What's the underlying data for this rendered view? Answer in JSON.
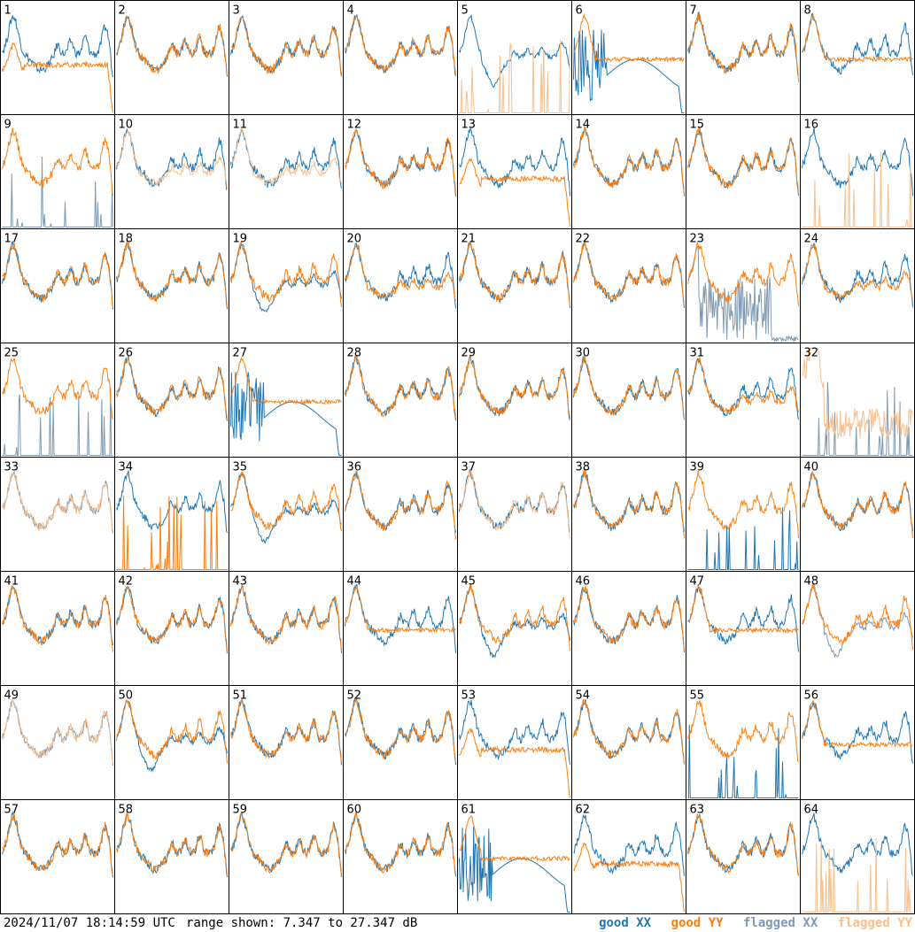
{
  "footer": {
    "timestamp": "2024/11/07 18:14:59 UTC",
    "range_text": "range shown: 7.347 to 27.347 dB"
  },
  "legend": [
    {
      "key": "good_xx",
      "label": "good XX",
      "color": "#1f77b4"
    },
    {
      "key": "good_yy",
      "label": "good YY",
      "color": "#ff7f0e"
    },
    {
      "key": "flagged_xx",
      "label": "flagged XX",
      "color": "#7f9bb3"
    },
    {
      "key": "flagged_yy",
      "label": "flagged YY",
      "color": "#f7c08e"
    }
  ],
  "chart_data": {
    "type": "line",
    "ylim": [
      7.347,
      27.347
    ],
    "units": "dB",
    "grid": {
      "rows": 8,
      "cols": 8
    },
    "panels": [
      {
        "label": "1",
        "xx": "good",
        "yy": "good",
        "yy_shape": "droop",
        "xx_shape": "normal"
      },
      {
        "label": "2",
        "xx": "good",
        "yy": "good"
      },
      {
        "label": "3",
        "xx": "good",
        "yy": "good"
      },
      {
        "label": "4",
        "xx": "good",
        "yy": "good"
      },
      {
        "label": "5",
        "xx": "good",
        "yy": "flagged",
        "xx_shape": "depressed",
        "yy_shape": "spikes"
      },
      {
        "label": "6",
        "xx": "good",
        "yy": "good",
        "xx_shape": "noisydip",
        "yy_shape": "flat"
      },
      {
        "label": "7",
        "xx": "good",
        "yy": "good"
      },
      {
        "label": "8",
        "xx": "good",
        "yy": "good",
        "yy_shape": "flat"
      },
      {
        "label": "9",
        "xx": "flagged",
        "yy": "good",
        "xx_shape": "spikes",
        "yy_shape": "normal"
      },
      {
        "label": "10",
        "xx": "good",
        "yy": "flagged",
        "yy_shape": "low"
      },
      {
        "label": "11",
        "xx": "good",
        "yy": "flagged",
        "yy_shape": "low"
      },
      {
        "label": "12",
        "xx": "good",
        "yy": "good"
      },
      {
        "label": "13",
        "xx": "good",
        "yy": "good",
        "yy_shape": "droop"
      },
      {
        "label": "14",
        "xx": "good",
        "yy": "good"
      },
      {
        "label": "15",
        "xx": "good",
        "yy": "good"
      },
      {
        "label": "16",
        "xx": "good",
        "yy": "flagged",
        "yy_shape": "spikes"
      },
      {
        "label": "17",
        "xx": "good",
        "yy": "good"
      },
      {
        "label": "18",
        "xx": "good",
        "yy": "good"
      },
      {
        "label": "19",
        "xx": "good",
        "yy": "good",
        "xx_shape": "depressed"
      },
      {
        "label": "20",
        "xx": "good",
        "yy": "good",
        "yy_shape": "low"
      },
      {
        "label": "21",
        "xx": "good",
        "yy": "good"
      },
      {
        "label": "22",
        "xx": "good",
        "yy": "good"
      },
      {
        "label": "23",
        "xx": "flagged",
        "yy": "good",
        "xx_shape": "noise"
      },
      {
        "label": "24",
        "xx": "good",
        "yy": "good",
        "yy_shape": "low"
      },
      {
        "label": "25",
        "xx": "flagged",
        "yy": "good",
        "xx_shape": "spikes"
      },
      {
        "label": "26",
        "xx": "good",
        "yy": "good"
      },
      {
        "label": "27",
        "xx": "good",
        "yy": "good",
        "xx_shape": "noisydip",
        "yy_shape": "flat"
      },
      {
        "label": "28",
        "xx": "good",
        "yy": "good"
      },
      {
        "label": "29",
        "xx": "good",
        "yy": "good"
      },
      {
        "label": "30",
        "xx": "good",
        "yy": "good"
      },
      {
        "label": "31",
        "xx": "good",
        "yy": "good",
        "yy_shape": "low"
      },
      {
        "label": "32",
        "xx": "flagged",
        "yy": "flagged",
        "xx_shape": "spikes",
        "yy_shape": "noisy"
      },
      {
        "label": "33",
        "xx": "flagged",
        "yy": "flagged"
      },
      {
        "label": "34",
        "xx": "good",
        "yy": "good",
        "yy_shape": "spikes"
      },
      {
        "label": "35",
        "xx": "good",
        "yy": "good",
        "xx_shape": "depressed"
      },
      {
        "label": "36",
        "xx": "good",
        "yy": "good"
      },
      {
        "label": "37",
        "xx": "good",
        "yy": "flagged"
      },
      {
        "label": "38",
        "xx": "good",
        "yy": "good"
      },
      {
        "label": "39",
        "xx": "good",
        "yy": "good",
        "xx_shape": "spikes"
      },
      {
        "label": "40",
        "xx": "good",
        "yy": "good"
      },
      {
        "label": "41",
        "xx": "good",
        "yy": "good"
      },
      {
        "label": "42",
        "xx": "good",
        "yy": "good"
      },
      {
        "label": "43",
        "xx": "good",
        "yy": "good"
      },
      {
        "label": "44",
        "xx": "good",
        "yy": "good",
        "yy_shape": "flat"
      },
      {
        "label": "45",
        "xx": "good",
        "yy": "good",
        "xx_shape": "depressed"
      },
      {
        "label": "46",
        "xx": "good",
        "yy": "good"
      },
      {
        "label": "47",
        "xx": "good",
        "yy": "good",
        "yy_shape": "flat"
      },
      {
        "label": "48",
        "xx": "flagged",
        "yy": "good",
        "xx_shape": "depressed"
      },
      {
        "label": "49",
        "xx": "flagged",
        "yy": "flagged"
      },
      {
        "label": "50",
        "xx": "good",
        "yy": "good",
        "xx_shape": "depressed"
      },
      {
        "label": "51",
        "xx": "good",
        "yy": "good"
      },
      {
        "label": "52",
        "xx": "good",
        "yy": "good"
      },
      {
        "label": "53",
        "xx": "good",
        "yy": "good",
        "yy_shape": "droop"
      },
      {
        "label": "54",
        "xx": "good",
        "yy": "good"
      },
      {
        "label": "55",
        "xx": "good",
        "yy": "good",
        "xx_shape": "spikes"
      },
      {
        "label": "56",
        "xx": "good",
        "yy": "good",
        "yy_shape": "flat"
      },
      {
        "label": "57",
        "xx": "good",
        "yy": "good"
      },
      {
        "label": "58",
        "xx": "good",
        "yy": "good"
      },
      {
        "label": "59",
        "xx": "good",
        "yy": "good"
      },
      {
        "label": "60",
        "xx": "good",
        "yy": "good"
      },
      {
        "label": "61",
        "xx": "good",
        "yy": "good",
        "xx_shape": "noisydip",
        "yy_shape": "flat"
      },
      {
        "label": "62",
        "xx": "good",
        "yy": "good",
        "yy_shape": "droop"
      },
      {
        "label": "63",
        "xx": "good",
        "yy": "good"
      },
      {
        "label": "64",
        "xx": "good",
        "yy": "flagged",
        "yy_shape": "spikes"
      }
    ]
  }
}
